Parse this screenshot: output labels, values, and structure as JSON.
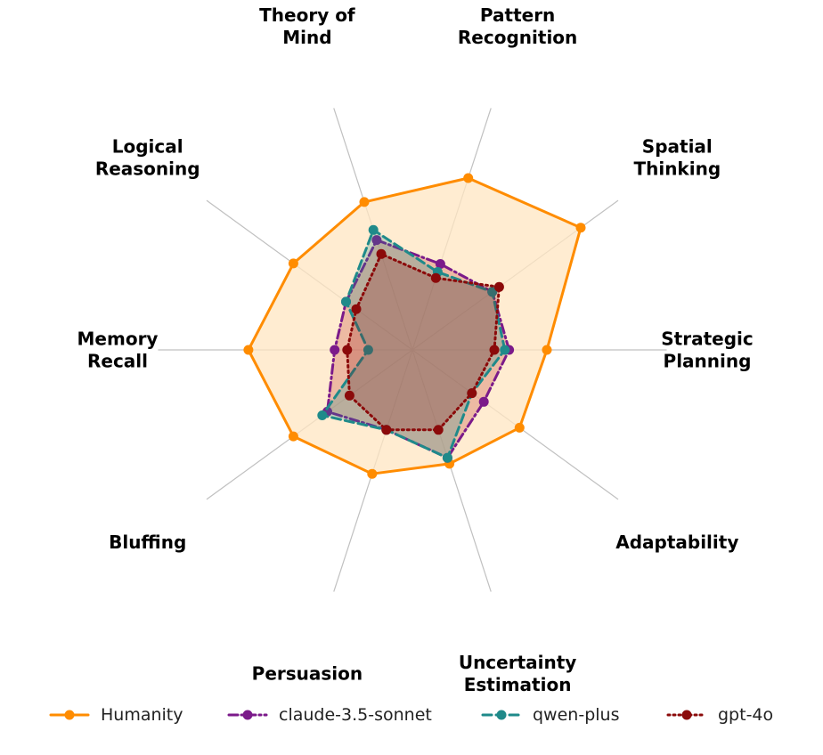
{
  "chart_data": {
    "type": "radar",
    "axes": [
      "Strategic Planning",
      "Spatial Thinking",
      "Pattern Recognition",
      "Theory of Mind",
      "Logical Reasoning",
      "Memory Recall",
      "Bluffing",
      "Persuasion",
      "Uncertainty Estimation",
      "Adaptability"
    ],
    "axis_label_lines": [
      [
        "Strategic",
        "Planning"
      ],
      [
        "Spatial",
        "Thinking"
      ],
      [
        "Pattern",
        "Recognition"
      ],
      [
        "Theory of",
        "Mind"
      ],
      [
        "Logical",
        "Reasoning"
      ],
      [
        "Memory",
        "Recall"
      ],
      [
        "Bluffing"
      ],
      [
        "Persuasion"
      ],
      [
        "Uncertainty",
        "Estimation"
      ],
      [
        "Adaptability"
      ]
    ],
    "rlim": [
      0,
      1
    ],
    "grid": true,
    "legend_position": "bottom",
    "series": [
      {
        "name": "Humanity",
        "color": "#FF8C00",
        "fill": "#FFE5C2",
        "fill_opacity": 0.75,
        "line": "solid",
        "values": [
          0.64,
          0.99,
          0.86,
          0.74,
          0.7,
          0.78,
          0.7,
          0.62,
          0.57,
          0.63
        ]
      },
      {
        "name": "claude-3.5-sonnet",
        "color": "#7B1A8A",
        "fill": "#C0392B",
        "fill_opacity": 0.28,
        "line": "dashdot",
        "values": [
          0.46,
          0.47,
          0.43,
          0.55,
          0.39,
          0.37,
          0.5,
          0.4,
          0.54,
          0.42
        ]
      },
      {
        "name": "qwen-plus",
        "color": "#1F8A8A",
        "fill": "#1F8A8A",
        "fill_opacity": 0.25,
        "line": "dashed",
        "values": [
          0.44,
          0.47,
          0.39,
          0.6,
          0.39,
          0.21,
          0.53,
          0.4,
          0.54,
          0.35
        ]
      },
      {
        "name": "gpt-4o",
        "color": "#8B0A0A",
        "fill": "#8B0A0A",
        "fill_opacity": 0.22,
        "line": "dotted",
        "values": [
          0.39,
          0.51,
          0.36,
          0.48,
          0.33,
          0.31,
          0.37,
          0.4,
          0.4,
          0.35
        ]
      }
    ]
  }
}
